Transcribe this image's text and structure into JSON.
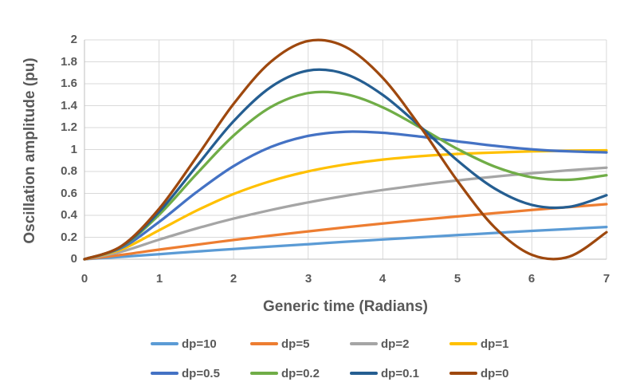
{
  "colors": {
    "grid": "#D9D9D9",
    "axis_line": "#BFBFBF",
    "text": "#595959",
    "background": "#FFFFFF"
  },
  "chart_data": {
    "type": "line",
    "title": "",
    "xlabel": "Generic time (Radians)",
    "ylabel": "Oscillation amplitude (pu)",
    "xlim": [
      0,
      7
    ],
    "ylim": [
      0,
      2
    ],
    "grid": true,
    "legend_position": "bottom",
    "x_ticks": [
      0,
      1,
      2,
      3,
      4,
      5,
      6,
      7
    ],
    "x_tick_labels": [
      "0",
      "1",
      "2",
      "3",
      "4",
      "5",
      "6",
      "7"
    ],
    "y_ticks": [
      0,
      0.2,
      0.4,
      0.6,
      0.8,
      1,
      1.2,
      1.4,
      1.6,
      1.8,
      2
    ],
    "y_tick_labels": [
      "0",
      "0.2",
      "0.4",
      "0.6",
      "0.8",
      "1",
      "1.2",
      "1.4",
      "1.6",
      "1.8",
      "2"
    ],
    "x": [
      0,
      0.5,
      1,
      1.5,
      2,
      2.5,
      3,
      3.5,
      4,
      4.5,
      5,
      5.5,
      6,
      6.5,
      7
    ],
    "series": [
      {
        "name": "dp=10",
        "color": "#5B9BD5",
        "values": [
          0,
          0.022,
          0.046,
          0.07,
          0.093,
          0.116,
          0.137,
          0.159,
          0.18,
          0.2,
          0.22,
          0.239,
          0.258,
          0.276,
          0.294
        ]
      },
      {
        "name": "dp=5",
        "color": "#ED7D31",
        "values": [
          0,
          0.04,
          0.087,
          0.132,
          0.175,
          0.215,
          0.254,
          0.291,
          0.326,
          0.359,
          0.39,
          0.42,
          0.449,
          0.476,
          0.502
        ]
      },
      {
        "name": "dp=2",
        "color": "#A5A5A5",
        "values": [
          0,
          0.07,
          0.178,
          0.28,
          0.37,
          0.449,
          0.518,
          0.578,
          0.631,
          0.677,
          0.718,
          0.753,
          0.784,
          0.811,
          0.835
        ]
      },
      {
        "name": "dp=1",
        "color": "#FFC000",
        "values": [
          0,
          0.09,
          0.264,
          0.442,
          0.594,
          0.713,
          0.801,
          0.864,
          0.908,
          0.939,
          0.96,
          0.973,
          0.983,
          0.989,
          0.993
        ]
      },
      {
        "name": "dp=0.5",
        "color": "#4472C4",
        "values": [
          0,
          0.104,
          0.34,
          0.61,
          0.849,
          1.023,
          1.124,
          1.162,
          1.153,
          1.118,
          1.075,
          1.034,
          1.002,
          0.983,
          0.974
        ]
      },
      {
        "name": "dp=0.2",
        "color": "#70AD47",
        "values": [
          0,
          0.115,
          0.405,
          0.775,
          1.127,
          1.388,
          1.515,
          1.505,
          1.385,
          1.201,
          1.006,
          0.845,
          0.747,
          0.724,
          0.766
        ]
      },
      {
        "name": "dp=0.1",
        "color": "#255E91",
        "values": [
          0,
          0.118,
          0.431,
          0.846,
          1.258,
          1.57,
          1.72,
          1.688,
          1.498,
          1.211,
          0.901,
          0.645,
          0.495,
          0.477,
          0.583
        ]
      },
      {
        "name": "dp=0",
        "color": "#9E480E",
        "values": [
          0,
          0.122,
          0.46,
          0.929,
          1.416,
          1.801,
          1.99,
          1.936,
          1.654,
          1.211,
          0.716,
          0.291,
          0.04,
          0.023,
          0.246
        ]
      }
    ]
  }
}
